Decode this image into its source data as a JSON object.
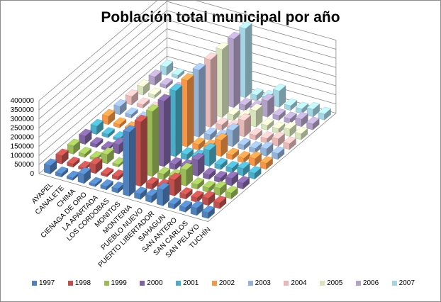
{
  "chart_data": {
    "type": "bar",
    "subtype": "3d-column",
    "title": "Población total municipal por año",
    "categories": [
      "AYAPEL",
      "CANALETE",
      "CHIMA",
      "CIENAGA DE ORO",
      "LA APARTADA",
      "LOS CORDOBAS",
      "MONITOS",
      "MONTERIA",
      "PUEBLO NUEVO",
      "PUERTO LIBERTADOR",
      "SAHAGUN",
      "SAN ANTERO",
      "SAN CARLOS",
      "SAN PELAYO",
      "TUCHÍN"
    ],
    "yticks": [
      "0",
      "50000",
      "100000",
      "150000",
      "200000",
      "250000",
      "300000",
      "350000",
      "400000"
    ],
    "ylim": [
      0,
      400000
    ],
    "series_names": [
      "1997",
      "1998",
      "1999",
      "2000",
      "2001",
      "2002",
      "2003",
      "2004",
      "2005",
      "2006",
      "2007"
    ],
    "colors": [
      "#4f81bd",
      "#c0504d",
      "#9bbb59",
      "#8064a2",
      "#4bacc6",
      "#f79646",
      "#95b3d7",
      "#e6b9b8",
      "#d7e4bd",
      "#b3a2c7",
      "#a5d5e3"
    ],
    "base_values": [
      45000,
      18000,
      13000,
      50000,
      13000,
      18000,
      23000,
      350000,
      30000,
      36000,
      88000,
      25000,
      25000,
      40000,
      32000
    ],
    "growth_per_year": [
      0.002,
      0.001,
      0.002,
      0.002,
      0.003,
      0.003,
      0.002,
      0.008,
      0.002,
      0.003,
      0.001,
      0.003,
      0.002,
      0.003,
      0.002
    ]
  },
  "legend": [
    "1997",
    "1998",
    "1999",
    "2000",
    "2001",
    "2002",
    "2003",
    "2004",
    "2005",
    "2006",
    "2007"
  ]
}
